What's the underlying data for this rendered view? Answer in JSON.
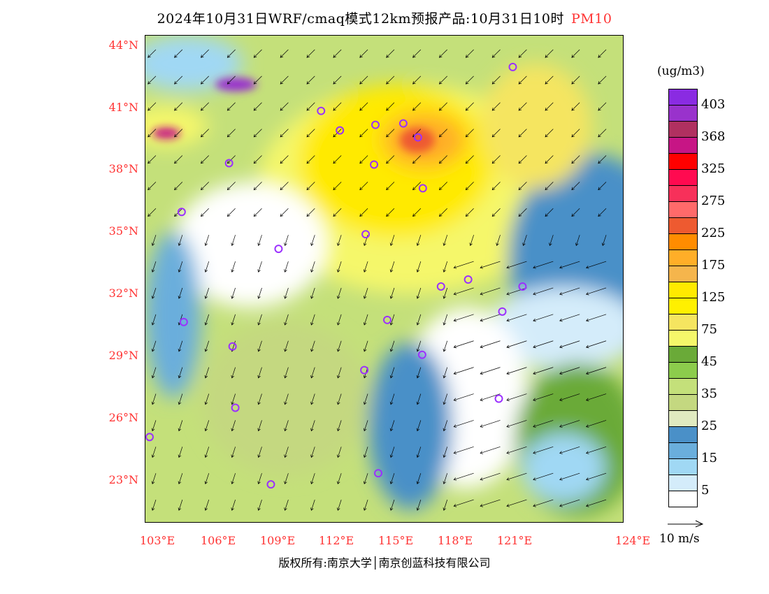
{
  "title": {
    "text": "2024年10月31日WRF/cmaq模式12km预报产品:10月31日10时",
    "species": "PM10",
    "species_color": "#ff3333"
  },
  "map": {
    "lat_labels": [
      "44°N",
      "41°N",
      "38°N",
      "35°N",
      "32°N",
      "29°N",
      "26°N",
      "23°N"
    ],
    "lon_labels": [
      "103°E",
      "106°E",
      "109°E",
      "112°E",
      "115°E",
      "118°E",
      "121°E",
      "124°E"
    ]
  },
  "legend": {
    "unit": "(ug/m3)",
    "colors": [
      "#8a2be2",
      "#9932cc",
      "#b03060",
      "#c71585",
      "#ff0000",
      "#ff0a50",
      "#f7305a",
      "#ff6a6a",
      "#ee5a30",
      "#ff8c00",
      "#ffae28",
      "#f5b54c",
      "#ffea00",
      "#fff000",
      "#f5e560",
      "#f5f76a",
      "#6aaa38",
      "#8ccc4c",
      "#c4e07a",
      "#c4d880",
      "#e0eac0",
      "#4a90c8",
      "#6aaedc",
      "#a0d8f4",
      "#d4ecfa",
      "#ffffff"
    ],
    "labels": [
      "403",
      "368",
      "325",
      "275",
      "225",
      "175",
      "125",
      "75",
      "45",
      "35",
      "25",
      "15",
      "5"
    ],
    "vector_label": "10 m/s"
  },
  "footer": {
    "text": "版权所有:南京大学│南京创蓝科技有限公司"
  }
}
